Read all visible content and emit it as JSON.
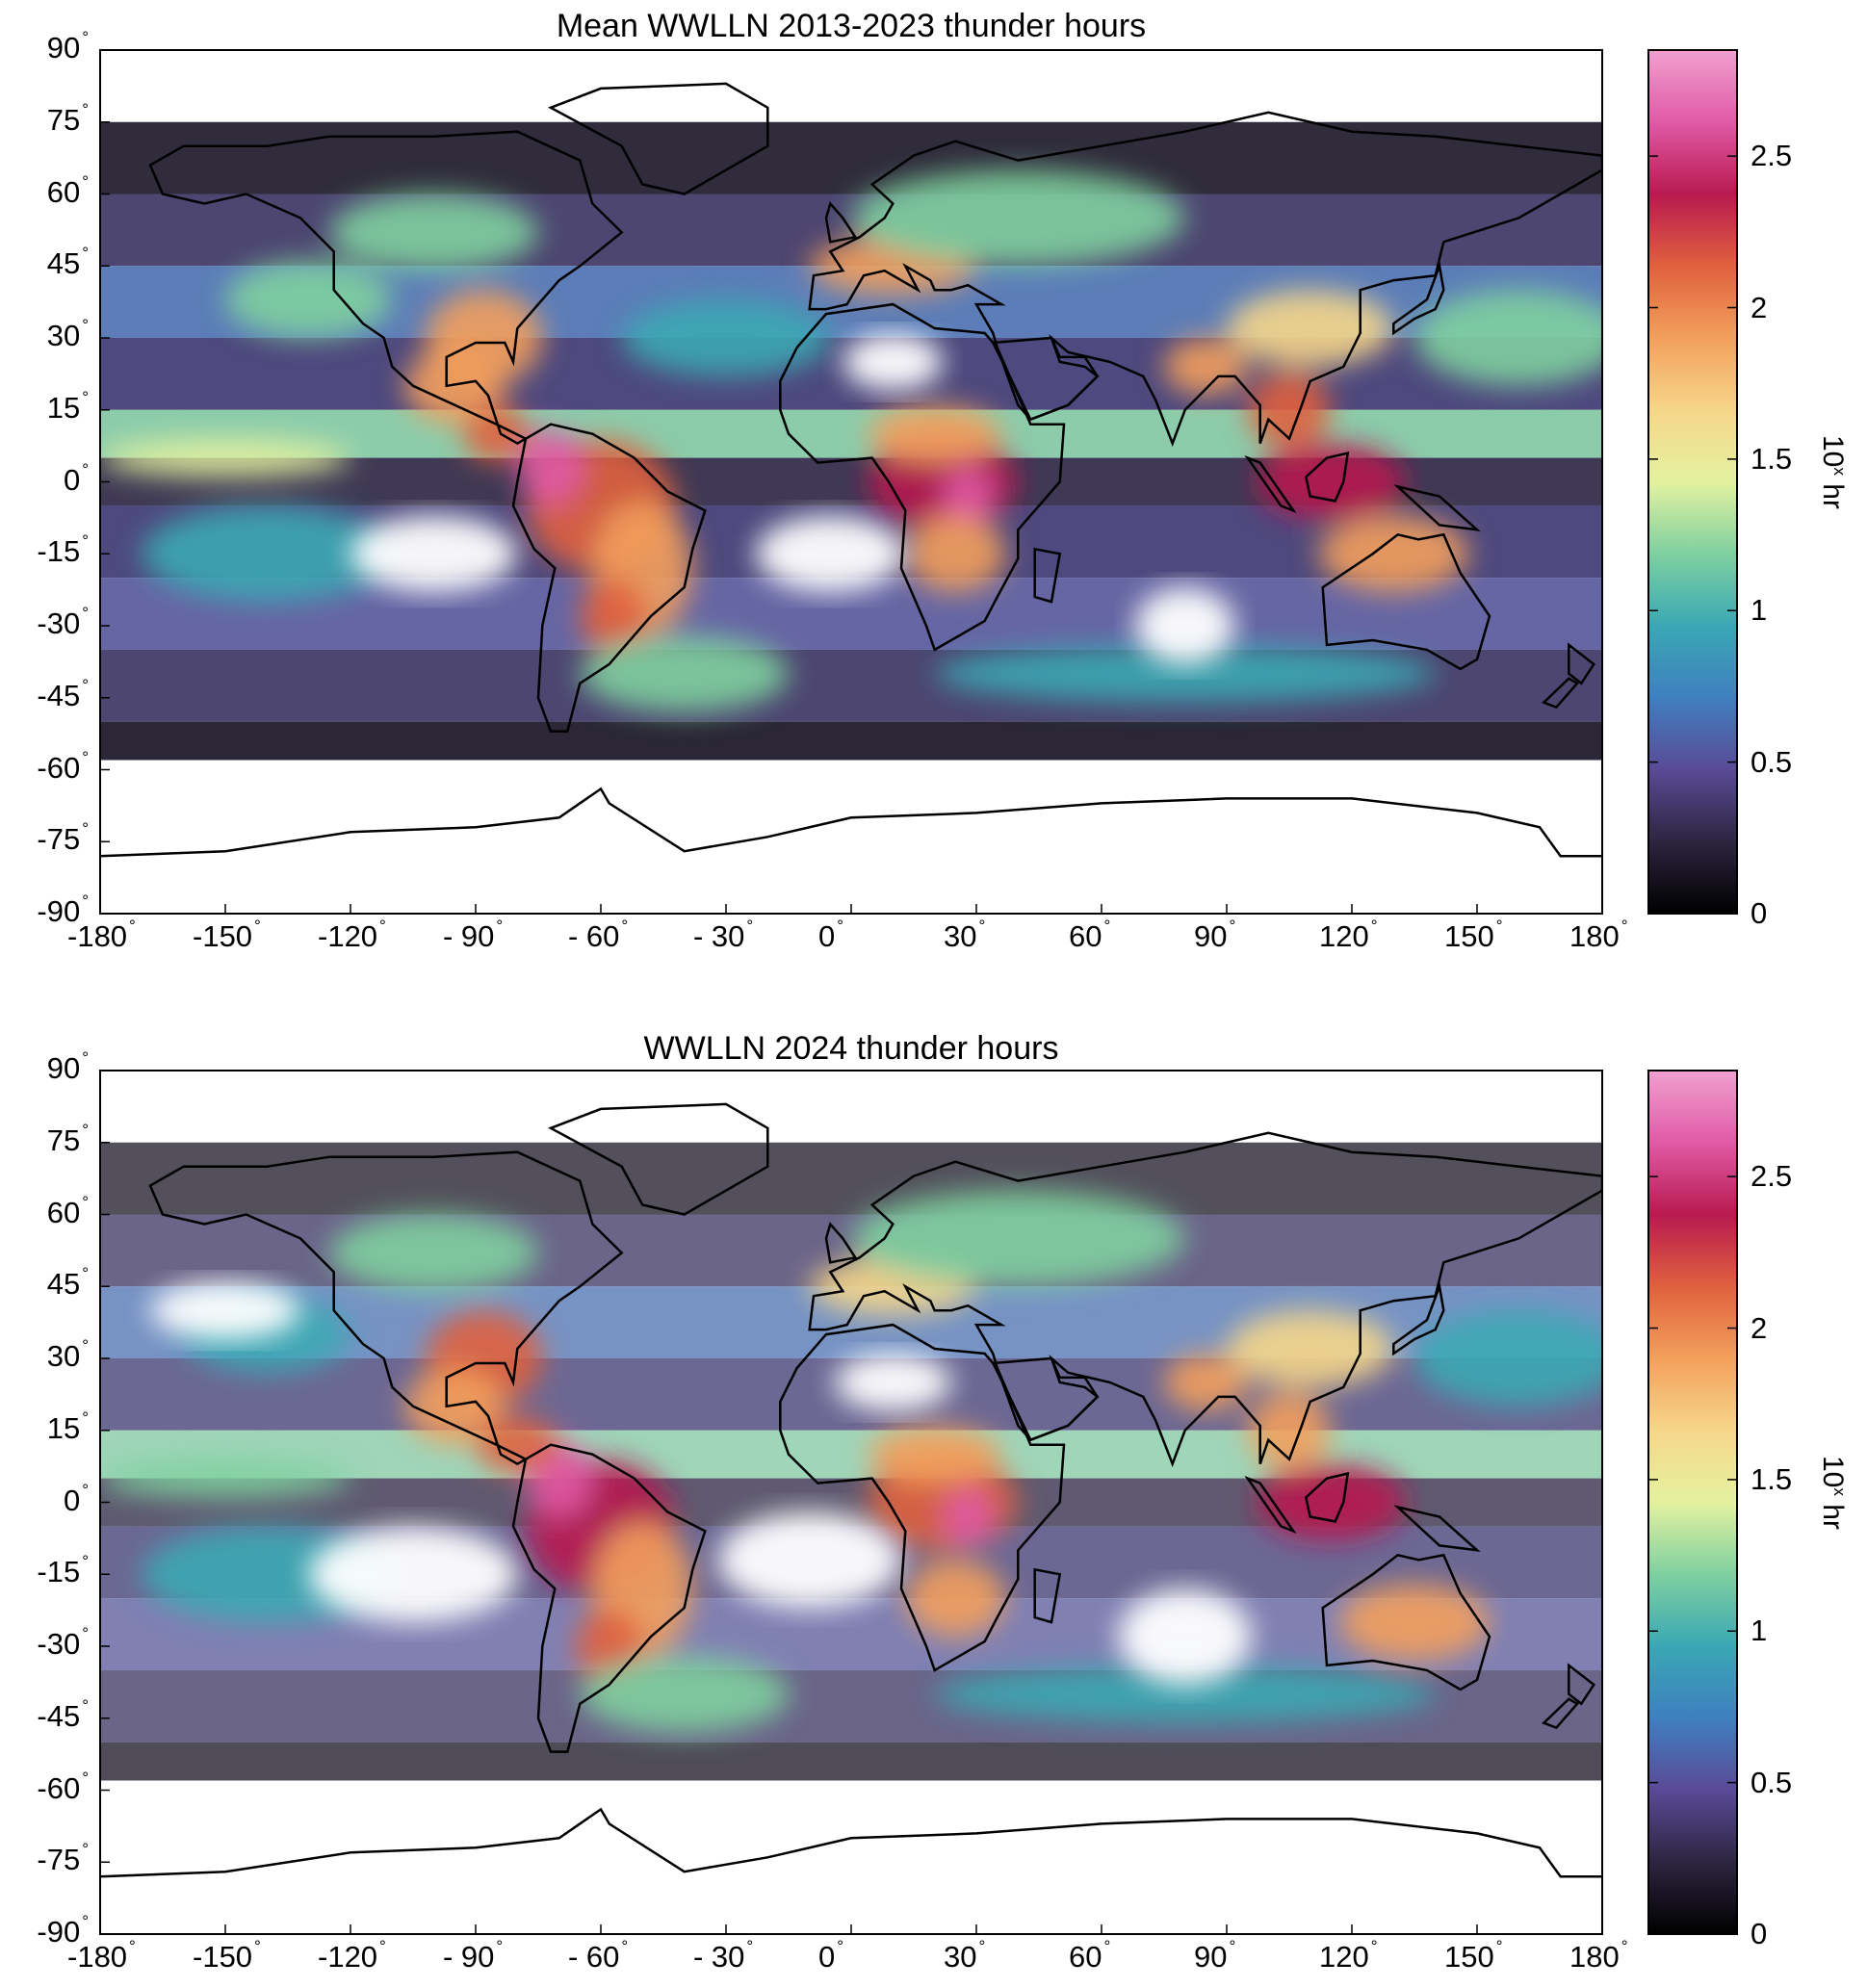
{
  "panels": [
    {
      "title": "Mean WWLLN 2013-2023 thunder hours",
      "variant": "mean"
    },
    {
      "title": "WWLLN 2024 thunder hours",
      "variant": "year"
    }
  ],
  "axes": {
    "lat_ticks": [
      "90",
      "75",
      "60",
      "45",
      "30",
      "15",
      "0",
      "-15",
      "-30",
      "-45",
      "-60",
      "-75",
      "-90"
    ],
    "lon_ticks": [
      "-180",
      "-150",
      "-120",
      "- 90",
      "- 60",
      "- 30",
      "0",
      "30",
      "60",
      "90",
      "120",
      "150",
      "180"
    ],
    "degree_symbol": "°"
  },
  "colorbar": {
    "ticks": [
      "2.5",
      "2",
      "1.5",
      "1",
      "0.5",
      "0"
    ],
    "tick_values": [
      2.5,
      2,
      1.5,
      1,
      0.5,
      0
    ],
    "range": [
      0,
      2.85
    ],
    "label_base": "10",
    "label_exp": "x",
    "label_unit": " hr",
    "colormap": [
      "#000000",
      "#2d2540",
      "#5a4a96",
      "#3f7fbf",
      "#3aa8b4",
      "#7fd0a0",
      "#e4f2a0",
      "#f6d68a",
      "#f3a05c",
      "#e0603e",
      "#b81a50",
      "#e15aa6",
      "#f0a0d0"
    ]
  },
  "chart_data": [
    {
      "type": "heatmap",
      "title": "Mean WWLLN 2013-2023 thunder hours",
      "x_range": [
        -180,
        180
      ],
      "y_range": [
        -90,
        90
      ],
      "value_range": [
        0,
        2.85
      ],
      "units": "10^x hr"
    },
    {
      "type": "heatmap",
      "title": "WWLLN 2024 thunder hours",
      "x_range": [
        -180,
        180
      ],
      "y_range": [
        -90,
        90
      ],
      "value_range": [
        0,
        2.85
      ],
      "units": "10^x hr"
    }
  ]
}
